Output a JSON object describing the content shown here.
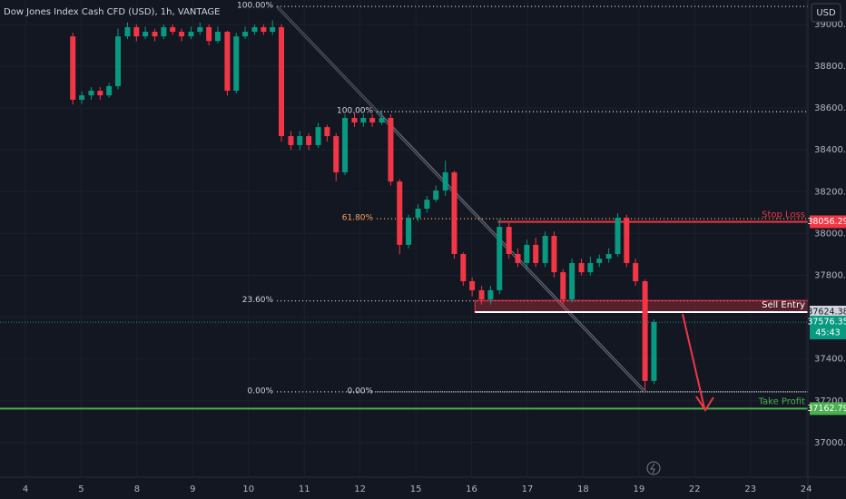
{
  "chart_data": {
    "type": "candlestick",
    "title": "Dow Jones Index Cash CFD (USD), 1h, VANTAGE",
    "currency": "USD",
    "up_color": "#089981",
    "down_color": "#f23645",
    "grid": true,
    "x": [
      0.85,
      1.01,
      1.18,
      1.34,
      1.5,
      1.66,
      1.83,
      1.99,
      2.15,
      2.32,
      2.48,
      2.64,
      2.8,
      2.97,
      3.13,
      3.29,
      3.45,
      3.62,
      3.78,
      3.94,
      4.11,
      4.27,
      4.43,
      4.59,
      4.76,
      4.92,
      5.08,
      5.25,
      5.41,
      5.57,
      5.73,
      5.9,
      6.06,
      6.22,
      6.39,
      6.55,
      6.71,
      6.87,
      7.04,
      7.2,
      7.36,
      7.53,
      7.69,
      7.85,
      8.01,
      8.18,
      8.34,
      8.5,
      8.67,
      8.83,
      8.99,
      9.15,
      9.32,
      9.48,
      9.64,
      9.8,
      9.97,
      10.13,
      10.29,
      10.46,
      10.62,
      10.78,
      10.94,
      11.11,
      11.27
    ],
    "open": [
      38943,
      38640,
      38661,
      38683,
      38661,
      38705,
      38943,
      38987,
      38943,
      38965,
      38943,
      38987,
      38965,
      38943,
      38965,
      38987,
      38921,
      38965,
      38683,
      38943,
      38965,
      38987,
      38965,
      38987,
      38466,
      38423,
      38466,
      38423,
      38509,
      38466,
      38293,
      38553,
      38531,
      38553,
      38531,
      38553,
      38249,
      37946,
      38076,
      38119,
      38162,
      38206,
      38293,
      37902,
      37772,
      37729,
      37685,
      37729,
      38032,
      37902,
      37859,
      37946,
      37859,
      37989,
      37815,
      37685,
      37859,
      37815,
      37859,
      37880,
      37902,
      38076,
      37859,
      37772,
      37295
    ],
    "high": [
      38960,
      38680,
      38700,
      38700,
      38720,
      38980,
      39010,
      39000,
      38990,
      38980,
      39000,
      39000,
      38980,
      38990,
      39010,
      39000,
      38990,
      38970,
      38960,
      38990,
      39000,
      39000,
      39020,
      39000,
      38490,
      38490,
      38480,
      38530,
      38520,
      38480,
      38570,
      38580,
      38570,
      38570,
      38590,
      38570,
      38260,
      38090,
      38140,
      38180,
      38230,
      38350,
      38300,
      37910,
      37790,
      37750,
      37750,
      38070,
      38050,
      37930,
      37970,
      37980,
      38010,
      38010,
      37830,
      37880,
      37880,
      37890,
      37900,
      37930,
      38097,
      38090,
      37880,
      37780,
      37590
    ],
    "low": [
      38618,
      38620,
      38640,
      38640,
      38650,
      38690,
      38930,
      38920,
      38930,
      38920,
      38930,
      38950,
      38920,
      38930,
      38950,
      38900,
      38910,
      38660,
      38670,
      38930,
      38950,
      38950,
      38950,
      38440,
      38400,
      38400,
      38400,
      38410,
      38440,
      38250,
      38280,
      38510,
      38510,
      38510,
      38520,
      38230,
      37900,
      37930,
      38060,
      38100,
      38150,
      38180,
      37880,
      37750,
      37700,
      37660,
      37660,
      37710,
      37880,
      37840,
      37830,
      37840,
      37840,
      37790,
      37660,
      37670,
      37800,
      37800,
      37840,
      37860,
      37890,
      37840,
      37750,
      37252,
      37280
    ],
    "close": [
      38640,
      38661,
      38683,
      38661,
      38705,
      38943,
      38987,
      38943,
      38965,
      38943,
      38987,
      38965,
      38943,
      38965,
      38987,
      38921,
      38965,
      38683,
      38943,
      38965,
      38987,
      38965,
      38987,
      38466,
      38423,
      38466,
      38423,
      38509,
      38466,
      38293,
      38553,
      38531,
      38553,
      38531,
      38553,
      38249,
      37946,
      38076,
      38119,
      38162,
      38206,
      38293,
      37902,
      37772,
      37729,
      37685,
      37729,
      38032,
      37902,
      37859,
      37946,
      37859,
      37989,
      37815,
      37685,
      37859,
      37815,
      37859,
      37880,
      37902,
      38076,
      37859,
      37772,
      37295,
      37577
    ],
    "xlim": [
      -0.456,
      14.03
    ],
    "xticks": [
      {
        "value": 0,
        "label": "4"
      },
      {
        "value": 1,
        "label": "5"
      },
      {
        "value": 2,
        "label": "8"
      },
      {
        "value": 3,
        "label": "9"
      },
      {
        "value": 4,
        "label": "10"
      },
      {
        "value": 5,
        "label": "11"
      },
      {
        "value": 6,
        "label": "12"
      },
      {
        "value": 7,
        "label": "15"
      },
      {
        "value": 8,
        "label": "16"
      },
      {
        "value": 9,
        "label": "17"
      },
      {
        "value": 10,
        "label": "18"
      },
      {
        "value": 11,
        "label": "19"
      },
      {
        "value": 12,
        "label": "22"
      },
      {
        "value": 13,
        "label": "23"
      },
      {
        "value": 14,
        "label": "24"
      }
    ],
    "ylim": [
      36839,
      39117
    ],
    "yticks": [
      {
        "value": 37000,
        "label": "37000.00"
      },
      {
        "value": 37200,
        "label": "37200.00"
      },
      {
        "value": 37400,
        "label": "37400.00"
      },
      {
        "value": 37600,
        "label": "37600.00"
      },
      {
        "value": 37800,
        "label": "37800.00"
      },
      {
        "value": 38000,
        "label": "38000.00"
      },
      {
        "value": 38200,
        "label": "38200.00"
      },
      {
        "value": 38400,
        "label": "38400.00"
      },
      {
        "value": 38600,
        "label": "38600.00"
      },
      {
        "value": 38800,
        "label": "38800.00"
      },
      {
        "value": 39000,
        "label": "39000.00"
      }
    ],
    "fib": [
      {
        "start_x": 4.51,
        "end_x": 11.11,
        "lines": [
          {
            "label": "100.00%",
            "value": 39086,
            "color": "#d1d4dc"
          },
          {
            "label": "23.60%",
            "value": 37678,
            "color": "#d1d4dc"
          },
          {
            "label": "0.00%",
            "value": 37243,
            "color": "#d1d4dc"
          }
        ]
      },
      {
        "start_x": 6.3,
        "end_x": 11.11,
        "lines": [
          {
            "label": "100.00%",
            "value": 38583,
            "color": "#d1d4dc"
          },
          {
            "label": "61.80%",
            "value": 38071,
            "color": "#f7a35c"
          },
          {
            "label": "0.00%",
            "value": 37243,
            "color": "#d1d4dc"
          }
        ]
      }
    ],
    "levels": [
      {
        "name": "Stop Loss",
        "value": 38056.29,
        "color": "#f23645",
        "start_x": 8.47
      },
      {
        "name": "Sell Entry",
        "value": 37624.38,
        "color": "#ffffff",
        "start_x": 8.06,
        "zone_to": 37680
      },
      {
        "name": "Take Profit",
        "value": 37162.79,
        "color": "#4caf50",
        "start_x": -0.456
      }
    ],
    "current_price": 37576.35,
    "countdown": "45:43"
  }
}
